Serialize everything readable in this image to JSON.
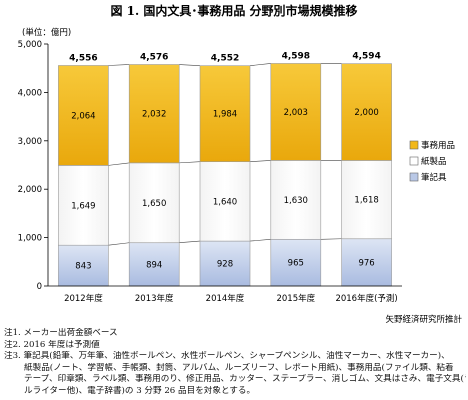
{
  "title": "図 1. 国内文具･事務用品 分野別市場規模推移",
  "unit_label": "(単位：億円)",
  "source": "矢野経済研究所推計",
  "notes": [
    "注1. メーカー出荷金額ベース",
    "注2. 2016 年度は予測値",
    "注3. 筆記具(鉛筆、万年筆、油性ボールペン、水性ボールペン、シャープペンシル、油性マーカー、水性マーカー)、",
    "紙製品(ノート、学習帳、手帳類、封筒、アルバム、ルーズリーフ、レポート用紙)、事務用品(ファイル類、粘着",
    "テープ、印章類、ラベル類、事務用のり、修正用品、カッター、ステープラー、消しゴム、文具はさみ、電子文具(ラベ",
    "ルライター他)、電子辞書)の 3 分野 26 品目を対象とする。"
  ],
  "chart_data": {
    "type": "bar",
    "stacked": true,
    "categories": [
      "2012年度",
      "2013年度",
      "2014年度",
      "2015年度",
      "2016年度(予測)"
    ],
    "series": [
      {
        "name": "筆記具",
        "values": [
          843,
          894,
          928,
          965,
          976
        ],
        "color": "#b9c8e6"
      },
      {
        "name": "紙製品",
        "values": [
          1649,
          1650,
          1640,
          1630,
          1618
        ],
        "color": "#ffffff"
      },
      {
        "name": "事務用品",
        "values": [
          2064,
          2032,
          1984,
          2003,
          2000
        ],
        "color": "#f2b81a"
      }
    ],
    "totals": [
      4556,
      4576,
      4552,
      4598,
      4594
    ],
    "ylim": [
      0,
      5000
    ],
    "yticks": [
      0,
      1000,
      2000,
      3000,
      4000,
      5000
    ],
    "ytick_labels": [
      "0",
      "1,000",
      "2,000",
      "3,000",
      "4,000",
      "5,000"
    ],
    "value_labels": [
      [
        "843",
        "894",
        "928",
        "965",
        "976"
      ],
      [
        "1,649",
        "1,650",
        "1,640",
        "1,630",
        "1,618"
      ],
      [
        "2,064",
        "2,032",
        "1,984",
        "2,003",
        "2,000"
      ]
    ],
    "total_labels": [
      "4,556",
      "4,576",
      "4,552",
      "4,598",
      "4,594"
    ],
    "legend": {
      "position": "right",
      "order": [
        "事務用品",
        "紙製品",
        "筆記具"
      ]
    },
    "grid": false,
    "connector_lines": true
  }
}
